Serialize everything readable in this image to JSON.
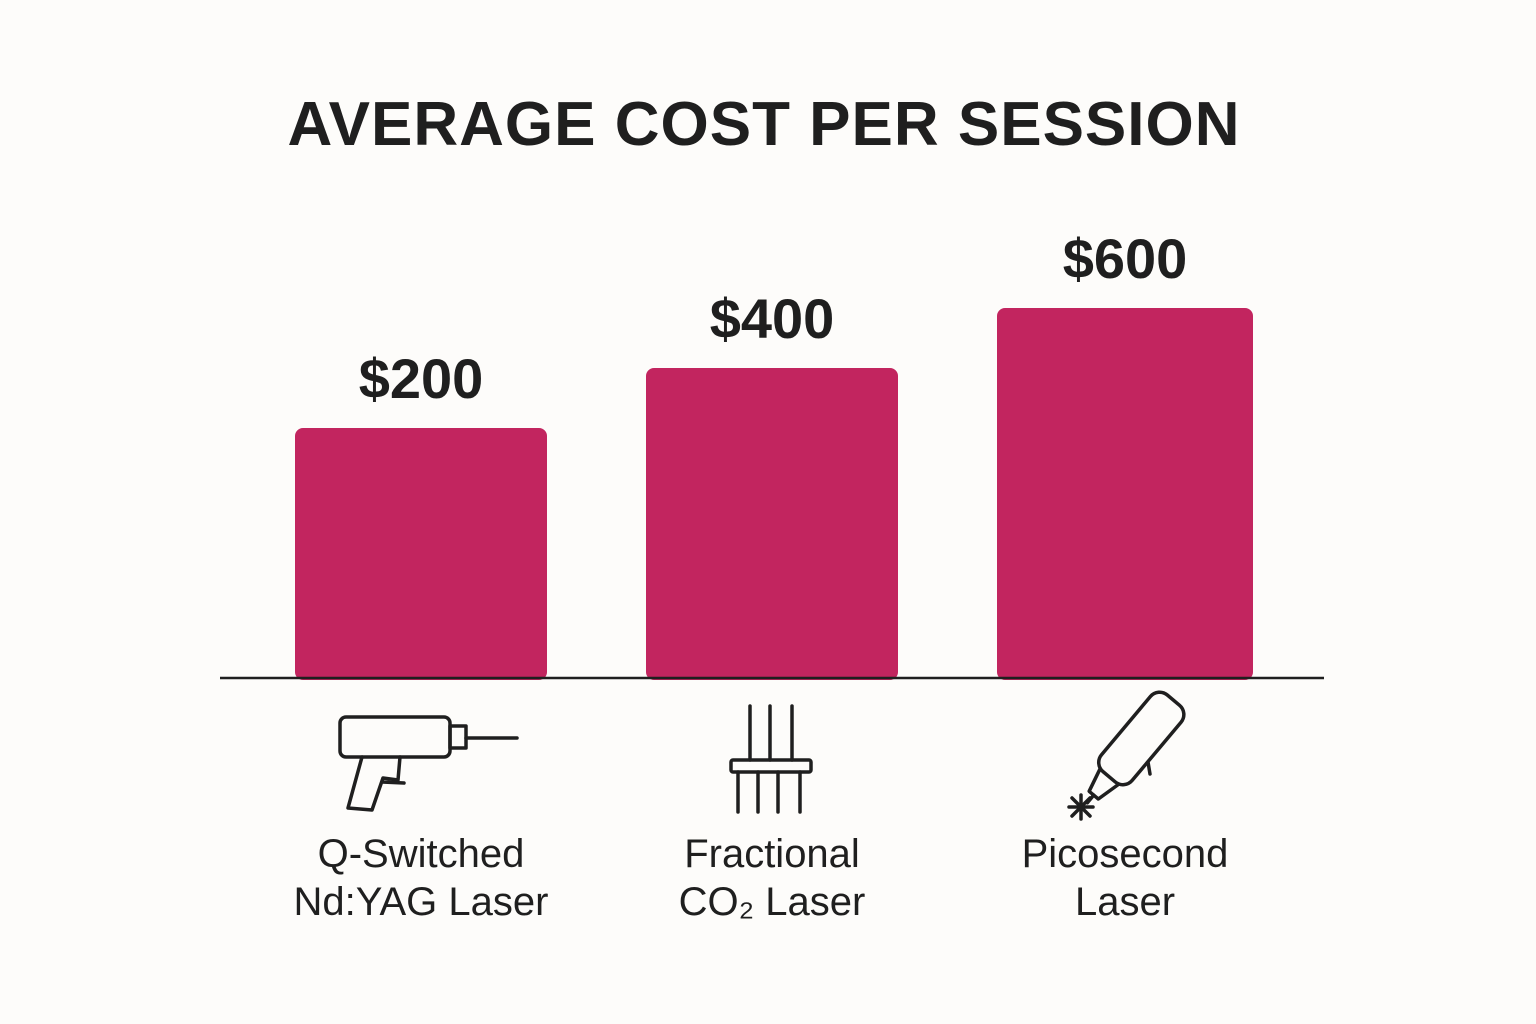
{
  "chart_data": {
    "type": "bar",
    "title": "AVERAGE COST PER SESSION",
    "categories": [
      [
        "Q-Switched",
        "Nd:YAG Laser"
      ],
      [
        "Fractional",
        "CO₂ Laser"
      ],
      [
        "Picosecond",
        "Laser"
      ]
    ],
    "values": [
      200,
      400,
      600
    ],
    "value_labels": [
      "$200",
      "$400",
      "$600"
    ],
    "icons": [
      "laser-handpiece-icon",
      "fractional-laser-icon",
      "picosecond-laser-pen-icon"
    ],
    "bar_color": "#c2255f",
    "grid": false,
    "legend": "none"
  }
}
